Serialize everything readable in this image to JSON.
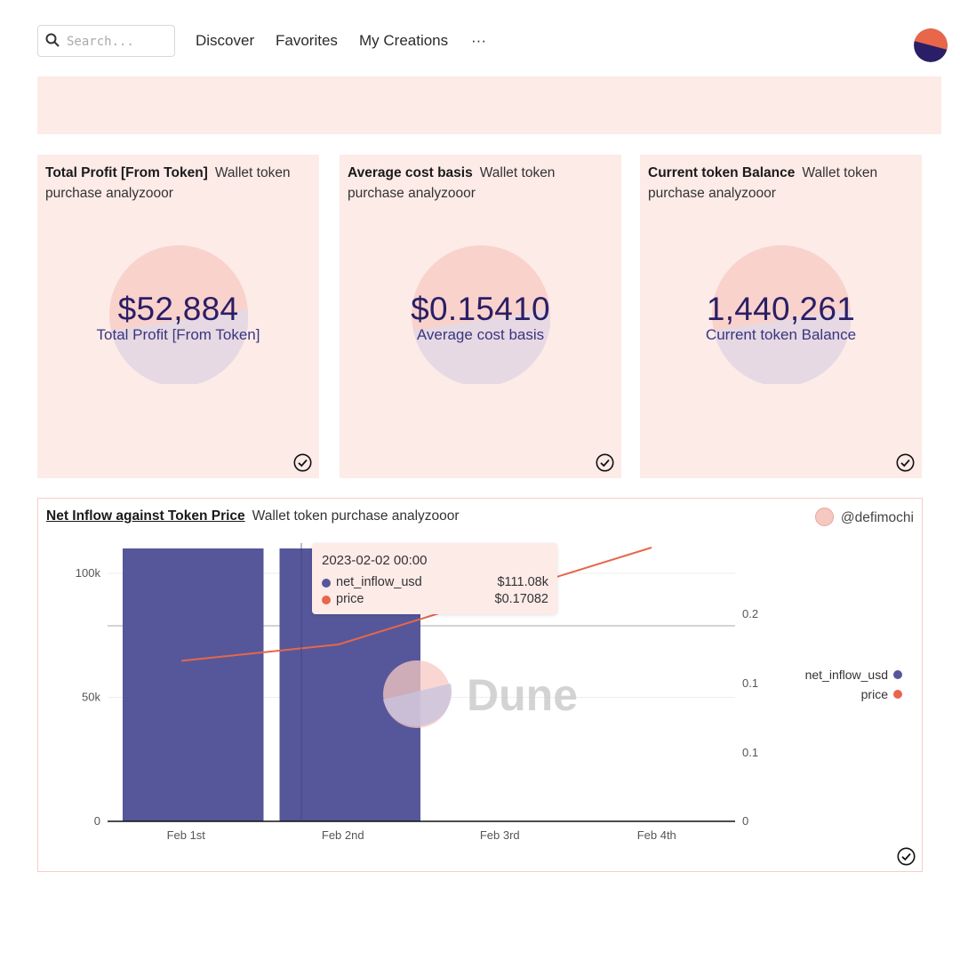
{
  "nav": {
    "search_placeholder": "Search...",
    "links": [
      "Discover",
      "Favorites",
      "My Creations",
      "···"
    ]
  },
  "counters": [
    {
      "title": "Total Profit [From Token]",
      "subtitle": "Wallet token purchase analyzooor",
      "value": "$52,884",
      "label": "Total Profit [From Token]"
    },
    {
      "title": "Average cost basis",
      "subtitle": "Wallet token purchase analyzooor",
      "value": "$0.15410",
      "label": "Average cost basis"
    },
    {
      "title": "Current token Balance",
      "subtitle": "Wallet token purchase analyzooor",
      "value": "1,440,261",
      "label": "Current token Balance"
    }
  ],
  "chart_panel": {
    "title": "Net Inflow against Token Price",
    "subtitle": "Wallet token purchase analyzooor",
    "author": "@defimochi",
    "watermark": "Dune",
    "tooltip": {
      "date": "2023-02-02 00:00",
      "rows": [
        {
          "name": "net_inflow_usd",
          "value": "$111.08k"
        },
        {
          "name": "price",
          "value": "$0.17082"
        }
      ]
    },
    "legend": [
      "net_inflow_usd",
      "price"
    ]
  },
  "chart_data": {
    "type": "bar",
    "x": [
      "Feb 1st",
      "Feb 2nd",
      "Feb 3rd",
      "Feb 4th"
    ],
    "y_left_ticks": [
      "0",
      "50k",
      "100k"
    ],
    "y_right_ticks": [
      "0",
      "0.1",
      "0.1",
      "0.2"
    ],
    "ylim_left": [
      0,
      111000
    ],
    "ylim_right": [
      0,
      0.25
    ],
    "series": [
      {
        "name": "net_inflow_usd",
        "type": "bar",
        "x": [
          "2023-02-01",
          "2023-02-02"
        ],
        "values": [
          110500,
          111080
        ]
      },
      {
        "name": "price",
        "type": "line",
        "x": [
          "2023-02-01",
          "2023-02-02",
          "2023-02-03"
        ],
        "values": [
          0.155,
          0.17082,
          0.2
        ]
      }
    ],
    "colors": {
      "net_inflow_usd": "#55579a",
      "price": "#e8664a"
    },
    "grid": true,
    "legend_position": "right"
  },
  "colors": {
    "brand_navy": "#2a1f66",
    "brand_orange": "#e8664a",
    "panel_bg": "#fdebe8"
  }
}
